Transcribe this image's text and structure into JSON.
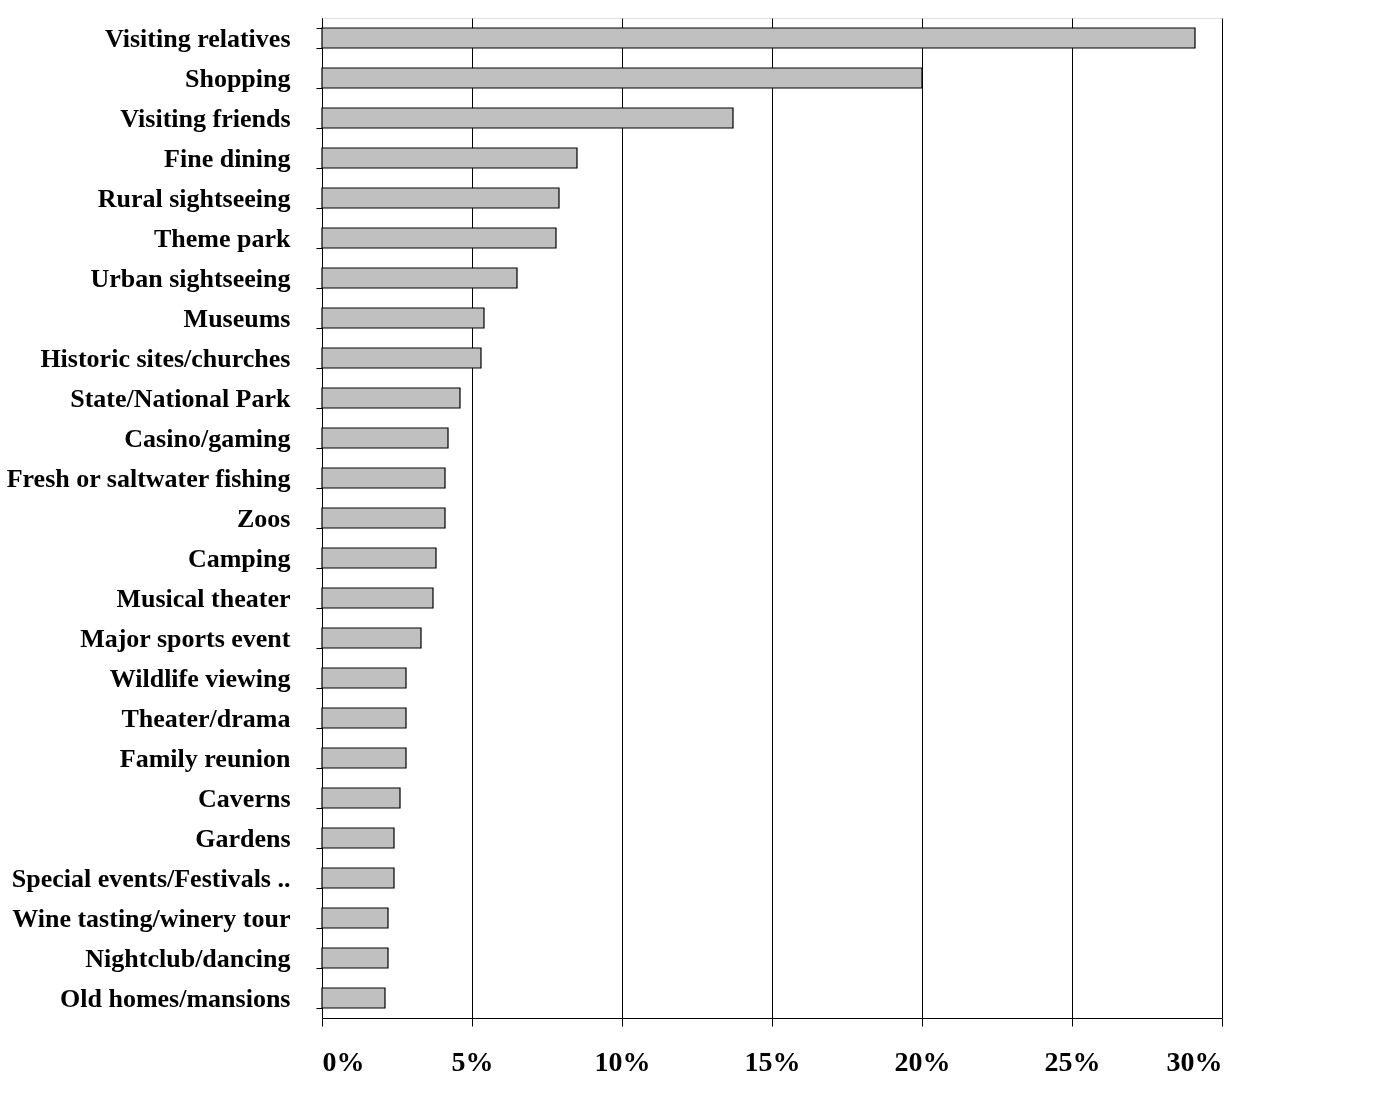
{
  "chart_data": {
    "type": "bar",
    "orientation": "horizontal",
    "categories": [
      "Visiting relatives",
      "Shopping",
      "Visiting friends",
      "Fine dining",
      "Rural sightseeing",
      "Theme park",
      "Urban sightseeing",
      "Museums",
      "Historic sites/churches",
      "State/National Park",
      "Casino/gaming",
      "Fresh or saltwater fishing",
      "Zoos",
      "Camping",
      "Musical theater",
      "Major sports event",
      "Wildlife viewing",
      "Theater/drama",
      "Family reunion",
      "Caverns",
      "Gardens",
      "Special events/Festivals ..",
      "Wine tasting/winery tour",
      "Nightclub/dancing",
      "Old homes/mansions"
    ],
    "values": [
      29.1,
      20.0,
      13.7,
      8.5,
      7.9,
      7.8,
      6.5,
      5.4,
      5.3,
      4.6,
      4.2,
      4.1,
      4.1,
      3.8,
      3.7,
      3.3,
      2.8,
      2.8,
      2.8,
      2.6,
      2.4,
      2.4,
      2.2,
      2.2,
      2.1
    ],
    "color": "#c0c0c0",
    "xlim": [
      0,
      30
    ],
    "xticks": [
      {
        "value": 0,
        "label": "0%"
      },
      {
        "value": 5,
        "label": "5%"
      },
      {
        "value": 10,
        "label": "10%"
      },
      {
        "value": 15,
        "label": "15%"
      },
      {
        "value": 20,
        "label": "20%"
      },
      {
        "value": 25,
        "label": "25%"
      },
      {
        "value": 30,
        "label": "30%"
      }
    ],
    "grid": "x"
  }
}
